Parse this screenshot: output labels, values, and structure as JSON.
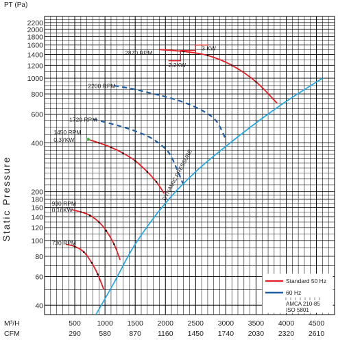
{
  "chart_data": {
    "type": "line",
    "y_unit_label": "PT (Pa)",
    "ylabel": "Static Pressure",
    "y_scale": "log",
    "ylim": [
      35,
      2400
    ],
    "xlim": [
      0,
      4800
    ],
    "y_tick_labels": [
      2200,
      2000,
      1800,
      1600,
      1400,
      1200,
      1000,
      800,
      600,
      400,
      200,
      180,
      160,
      140,
      120,
      100,
      80,
      60,
      40
    ],
    "x_row1_unit": "M³/H",
    "x_row2_unit": "CFM",
    "x_ticks": [
      500,
      1000,
      1500,
      2000,
      2500,
      3000,
      3500,
      4000,
      4500
    ],
    "x_row2_labels": [
      "290",
      "580",
      "870",
      "1160",
      "1450",
      "1740",
      "2030",
      "2320",
      "2610"
    ],
    "grid": true,
    "colors": {
      "standard_50hz": "#e31e24",
      "hz60": "#1f5fa6",
      "system_curve": "#29a9e1",
      "grid": "#000000"
    },
    "series": [
      {
        "name": "2870 RPM",
        "kind": "50Hz",
        "x": [
          1900,
          2300,
          2700,
          3100,
          3500,
          3850
        ],
        "y": [
          1500,
          1460,
          1380,
          1200,
          950,
          700
        ]
      },
      {
        "name": "2200 RPM",
        "kind": "60Hz",
        "x": [
          1150,
          1450,
          1750,
          2050,
          2350,
          2650,
          2850,
          3000
        ],
        "y": [
          900,
          860,
          810,
          760,
          700,
          620,
          540,
          420
        ]
      },
      {
        "name": "1720 RPM",
        "kind": "60Hz",
        "x": [
          800,
          1050,
          1300,
          1550,
          1800,
          2050,
          2200,
          2300
        ],
        "y": [
          560,
          530,
          500,
          465,
          420,
          350,
          270,
          220
        ]
      },
      {
        "name": "1450 RPM",
        "kind": "50Hz",
        "x": [
          720,
          900,
          1100,
          1300,
          1500,
          1700,
          1850,
          1980
        ],
        "y": [
          420,
          400,
          375,
          345,
          310,
          265,
          230,
          195
        ]
      },
      {
        "name": "930 RPM",
        "kind": "50Hz",
        "x": [
          450,
          600,
          750,
          900,
          1020,
          1150,
          1250
        ],
        "y": [
          155,
          150,
          143,
          130,
          115,
          95,
          76
        ]
      },
      {
        "name": "730 RPM",
        "kind": "50Hz",
        "x": [
          350,
          500,
          650,
          780,
          880,
          980
        ],
        "y": [
          95,
          92,
          85,
          73,
          62,
          50
        ]
      },
      {
        "name": "system",
        "kind": "system",
        "x": [
          850,
          1150,
          1500,
          2000,
          2500,
          3000,
          3500,
          4000,
          4600
        ],
        "y": [
          35,
          55,
          95,
          170,
          265,
          380,
          530,
          720,
          1000
        ]
      }
    ],
    "annotations": [
      {
        "text": "2870 RPM",
        "x": 1330,
        "y": 1390
      },
      {
        "text": "2.2KW",
        "x": 2050,
        "y": 1170
      },
      {
        "text": "3 KW",
        "x": 2600,
        "y": 1480
      },
      {
        "text": "2200 RPM",
        "x": 720,
        "y": 870
      },
      {
        "text": "1720 RPM",
        "x": 410,
        "y": 540
      },
      {
        "text": "1450 RPM",
        "x": 150,
        "y": 450
      },
      {
        "text": "0.37KW",
        "x": 150,
        "y": 405
      },
      {
        "text": "930 RPM",
        "x": 120,
        "y": 164
      },
      {
        "text": "0.16KW",
        "x": 120,
        "y": 150
      },
      {
        "text": "730 RPM",
        "x": 120,
        "y": 94
      },
      {
        "text": "DYNAMIC PRESSURE",
        "x": 2000,
        "y": 175
      }
    ],
    "legend": {
      "position": "bottom-right",
      "entries": [
        "Standard 50 Hz",
        "60 Hz"
      ],
      "standard_labels": [
        "AMCA 210-85",
        "ISO 5801"
      ]
    }
  }
}
